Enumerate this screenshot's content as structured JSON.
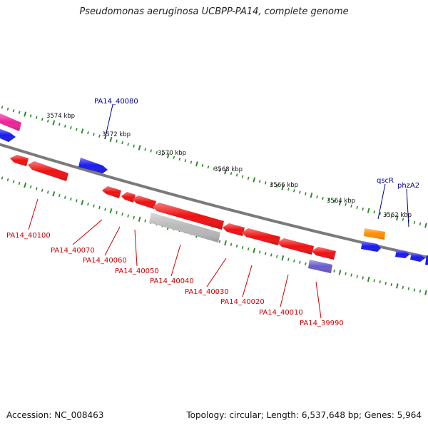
{
  "title": "Pseudomonas aeruginosa UCBPP-PA14, complete genome",
  "footer": {
    "accession": "Accession: NC_008463",
    "summary": "Topology: circular; Length: 6,537,648 bp; Genes: 5,964"
  },
  "colors": {
    "backbone": "#7a7a7a",
    "tick": "#2e8b2e",
    "forward_gene": "#1a1aee",
    "reverse_gene": "#ee1111",
    "qscR": "#ff8c00",
    "magenta_gene": "#ee2299",
    "grey_gene": "#b8b8b8",
    "purple_gene": "#6a5acd",
    "forward_label": "#00008b",
    "reverse_label": "#cc0000"
  },
  "scale_labels": [
    "3574 kbp",
    "3572 kbp",
    "3570 kbp",
    "3568 kbp",
    "3566 kbp",
    "3564 kbp",
    "3562 kbp"
  ],
  "forward_labels": [
    "PA14_40080",
    "qscR",
    "phzA2"
  ],
  "reverse_labels": [
    "PA14_40100",
    "PA14_40070",
    "PA14_40060",
    "PA14_40050",
    "PA14_40040",
    "PA14_40030",
    "PA14_40020",
    "PA14_40010",
    "PA14_39990"
  ]
}
